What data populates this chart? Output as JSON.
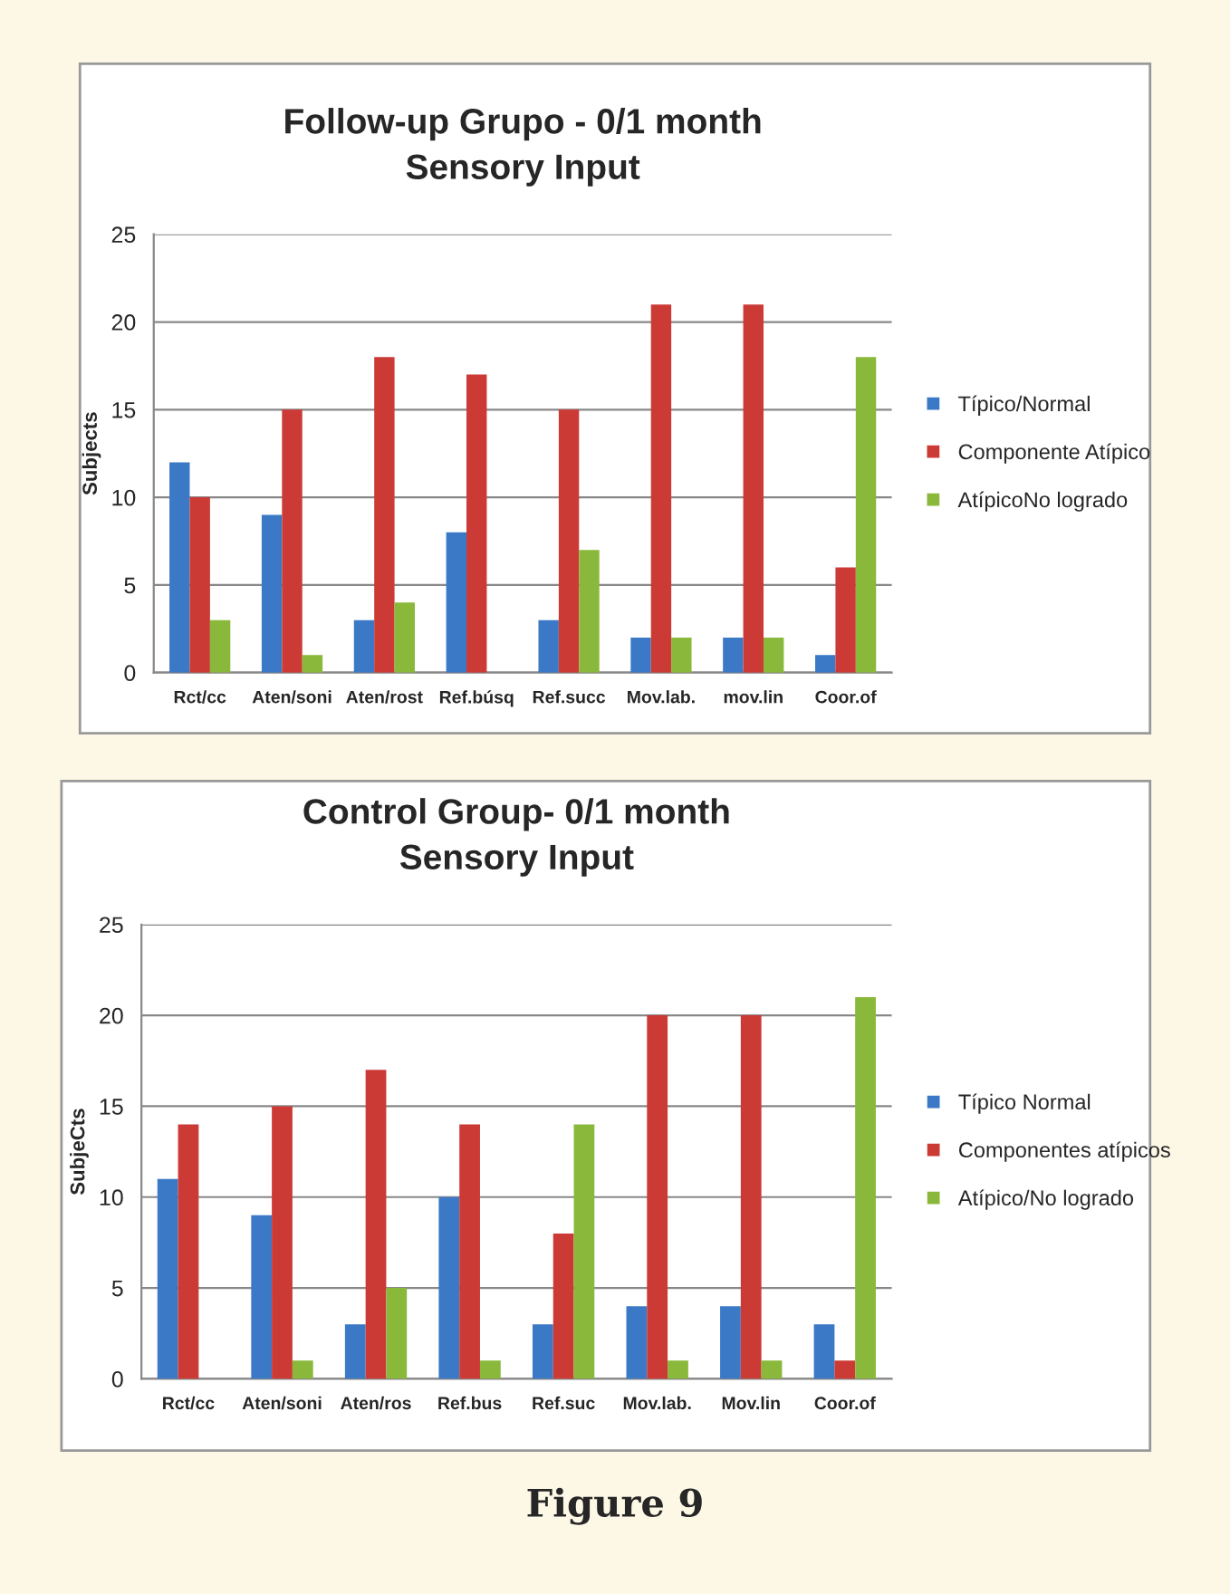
{
  "chart_data": [
    {
      "type": "bar",
      "title": "Follow-up Grupo - 0/1 month\nSensory Input",
      "ylabel": "Subjects",
      "categories": [
        "Rct/cc",
        "Aten/soni",
        "Aten/rost",
        "Ref.búsq",
        "Ref.succ",
        "Mov.lab.",
        "mov.lin",
        "Coor.of"
      ],
      "series": [
        {
          "name": "Típico/Normal",
          "color": "#3b78c6",
          "values": [
            12,
            9,
            3,
            8,
            3,
            2,
            2,
            1
          ]
        },
        {
          "name": "Componente Atípico",
          "color": "#cc3a36",
          "values": [
            10,
            15,
            18,
            17,
            15,
            21,
            21,
            6
          ]
        },
        {
          "name": "AtípicoNo logrado",
          "color": "#8ab83a",
          "values": [
            3,
            1,
            4,
            0,
            7,
            2,
            2,
            18
          ]
        }
      ],
      "ylim": [
        0,
        25
      ],
      "yticks": [
        0,
        5,
        10,
        15,
        20,
        25
      ],
      "grid": "y",
      "legend": "right"
    },
    {
      "type": "bar",
      "title": "Control Group- 0/1 month\nSensory Input",
      "ylabel": "SubjeCts",
      "categories": [
        "Rct/cc",
        "Aten/soni",
        "Aten/ros",
        "Ref.bus",
        "Ref.suc",
        "Mov.lab.",
        "Mov.lin",
        "Coor.of"
      ],
      "series": [
        {
          "name": "Típico Normal",
          "color": "#3b78c6",
          "values": [
            11,
            9,
            3,
            10,
            3,
            4,
            4,
            3
          ]
        },
        {
          "name": "Componentes atípicos",
          "color": "#cc3a36",
          "values": [
            14,
            15,
            17,
            14,
            8,
            20,
            20,
            1
          ]
        },
        {
          "name": "Atípico/No logrado",
          "color": "#8ab83a",
          "values": [
            0,
            1,
            5,
            1,
            14,
            1,
            1,
            21
          ]
        }
      ],
      "ylim": [
        0,
        25
      ],
      "yticks": [
        0,
        5,
        10,
        15,
        20,
        25
      ],
      "grid": "y",
      "legend": "right",
      "annotations": [
        "Figure 9"
      ]
    }
  ]
}
